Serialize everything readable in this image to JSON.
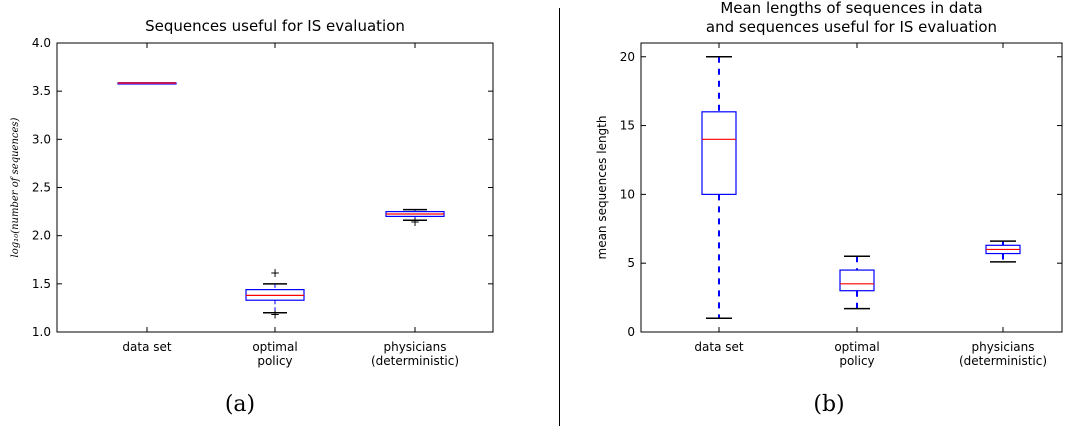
{
  "colors": {
    "box": "#0000ff",
    "median": "#ff0000",
    "whisker_cap": "#000000",
    "axis": "#000000"
  },
  "chart_data": [
    {
      "type": "box",
      "title": "Sequences useful for IS evaluation",
      "subtitle": "",
      "ylabel": "log₁₀(number of sequences)",
      "xlabel": "",
      "caption": "(a)",
      "ylim": [
        1.0,
        4.0
      ],
      "yticks": [
        1.0,
        1.5,
        2.0,
        2.5,
        3.0,
        3.5,
        4.0
      ],
      "ytick_labels": [
        "1.0",
        "1.5",
        "2.0",
        "2.5",
        "3.0",
        "3.5",
        "4.0"
      ],
      "categories": [
        [
          "data set"
        ],
        [
          "optimal",
          "policy"
        ],
        [
          "physicians",
          "(deterministic)"
        ]
      ],
      "boxes": [
        {
          "min": 3.585,
          "q1": 3.585,
          "median": 3.585,
          "q3": 3.585,
          "max": 3.585,
          "outliers": []
        },
        {
          "min": 1.2,
          "q1": 1.33,
          "median": 1.38,
          "q3": 1.44,
          "max": 1.5,
          "outliers": [
            1.61,
            1.18
          ]
        },
        {
          "min": 2.16,
          "q1": 2.2,
          "median": 2.225,
          "q3": 2.25,
          "max": 2.27,
          "outliers": [
            2.14
          ]
        }
      ],
      "grid": false
    },
    {
      "type": "box",
      "title": "Mean lengths of sequences in data",
      "subtitle": "and sequences useful for IS evaluation",
      "ylabel": "mean sequences length",
      "xlabel": "",
      "caption": "(b)",
      "ylim": [
        0,
        21
      ],
      "yticks": [
        0,
        5,
        10,
        15,
        20
      ],
      "ytick_labels": [
        "0",
        "5",
        "10",
        "15",
        "20"
      ],
      "categories": [
        [
          "data set"
        ],
        [
          "optimal",
          "policy"
        ],
        [
          "physicians",
          "(deterministic)"
        ]
      ],
      "boxes": [
        {
          "min": 1,
          "q1": 10,
          "median": 14,
          "q3": 16,
          "max": 20,
          "outliers": []
        },
        {
          "min": 1.7,
          "q1": 3,
          "median": 3.5,
          "q3": 4.5,
          "max": 5.5,
          "outliers": []
        },
        {
          "min": 5.1,
          "q1": 5.7,
          "median": 6,
          "q3": 6.3,
          "max": 6.6,
          "outliers": []
        }
      ],
      "grid": false
    }
  ]
}
